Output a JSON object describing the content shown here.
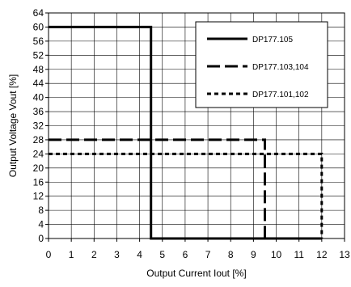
{
  "chart_data": {
    "type": "line",
    "xlabel": "Output Current Iout [%]",
    "ylabel": "Output Voltage Vout [%]",
    "xlim": [
      0,
      13
    ],
    "ylim": [
      0,
      64
    ],
    "x_ticks": [
      0,
      1,
      2,
      3,
      4,
      5,
      6,
      7,
      8,
      9,
      10,
      11,
      12,
      13
    ],
    "y_ticks": [
      0,
      4,
      8,
      12,
      16,
      20,
      24,
      28,
      32,
      36,
      40,
      44,
      48,
      52,
      56,
      60,
      64
    ],
    "grid": true,
    "legend_position": "top-right",
    "colors": {
      "series": "#000000",
      "grid": "#000000",
      "background": "#ffffff"
    },
    "series": [
      {
        "name": "DP177.105",
        "style": "solid",
        "x": [
          0,
          4.5,
          4.5,
          12
        ],
        "y": [
          60,
          60,
          0,
          0
        ]
      },
      {
        "name": "DP177.103,104",
        "style": "dashed",
        "x": [
          0,
          9.5,
          9.5,
          12
        ],
        "y": [
          28,
          28,
          0,
          0
        ]
      },
      {
        "name": "DP177.101,102",
        "style": "dotted",
        "x": [
          0,
          12,
          12
        ],
        "y": [
          24,
          24,
          0
        ]
      }
    ]
  }
}
